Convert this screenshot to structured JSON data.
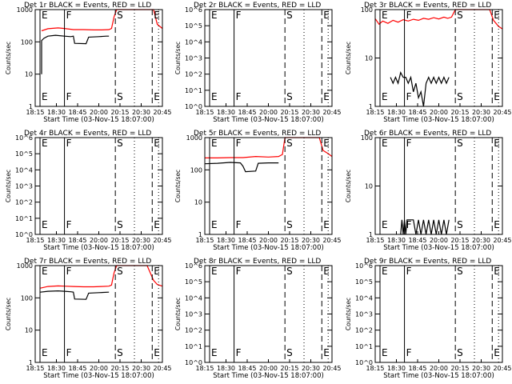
{
  "page": {
    "xlabel": "Start Time (03-Nov-15 18:07:00)",
    "ylabel": "Counts/sec",
    "x_ticks": [
      "18:15",
      "18:30",
      "18:45",
      "20:00",
      "20:15",
      "20:30",
      "20:45"
    ]
  },
  "colors": {
    "events": "#000000",
    "lld": "#ff0000",
    "axis": "#000000"
  },
  "chart_data": [
    {
      "title": "Det 1r BLACK = Events, RED = LLD",
      "type": "line",
      "scale": "log",
      "ylim": [
        1,
        1000
      ],
      "y_ticks": [
        {
          "v": 1,
          "t": "1"
        },
        {
          "v": 10,
          "t": "10"
        },
        {
          "v": 100,
          "t": "100"
        },
        {
          "v": 1000,
          "t": "1000"
        }
      ],
      "markers": [
        {
          "x": 0,
          "label": "E",
          "style": "solid"
        },
        {
          "x": 0.23,
          "label": "F",
          "style": "solid"
        },
        {
          "x": 0.63,
          "label": "S",
          "style": "dashed"
        },
        {
          "x": 0.92,
          "label": "E",
          "style": "dashed"
        }
      ],
      "series": [
        {
          "name": "LLD",
          "color": "#ff0000",
          "x": [
            0.05,
            0.1,
            0.18,
            0.23,
            0.3,
            0.38,
            0.46,
            0.52,
            0.58,
            0.6,
            0.62,
            0.64,
            0.66,
            0.7,
            0.74,
            0.78,
            0.84,
            0.88,
            0.93,
            0.96,
            1.0
          ],
          "y": [
            220,
            255,
            270,
            260,
            240,
            240,
            235,
            235,
            240,
            260,
            600,
            1000,
            1000,
            1000,
            1000,
            1000,
            1000,
            1000,
            1000,
            350,
            260
          ]
        },
        {
          "name": "Events",
          "color": "#000000",
          "x": [
            0.05,
            0.05,
            0.07,
            0.1,
            0.16,
            0.23,
            0.28,
            0.3,
            0.31,
            0.4,
            0.42,
            0.5,
            0.56,
            0.58
          ],
          "y": [
            10,
            110,
            130,
            150,
            160,
            150,
            145,
            150,
            90,
            88,
            140,
            145,
            150,
            150
          ]
        }
      ]
    },
    {
      "title": "Det 2r BLACK = Events, RED = LLD",
      "type": "line",
      "scale": "log",
      "ylim": [
        1,
        1000000
      ],
      "y_ticks": [
        {
          "v": 1,
          "t": "10^0"
        },
        {
          "v": 10,
          "t": "10^1"
        },
        {
          "v": 100,
          "t": "10^2"
        },
        {
          "v": 1000,
          "t": "10^3"
        },
        {
          "v": 10000,
          "t": "10^4"
        },
        {
          "v": 100000,
          "t": "10^5"
        },
        {
          "v": 1000000,
          "t": "10^6"
        }
      ],
      "markers": [
        {
          "x": 0,
          "label": "E",
          "style": "solid"
        },
        {
          "x": 0.23,
          "label": "F",
          "style": "solid"
        },
        {
          "x": 0.63,
          "label": "S",
          "style": "dashed"
        },
        {
          "x": 0.92,
          "label": "E",
          "style": "dashed"
        }
      ],
      "series": []
    },
    {
      "title": "Det 3r BLACK = Events, RED = LLD",
      "type": "line",
      "scale": "log",
      "ylim": [
        1,
        100
      ],
      "y_ticks": [
        {
          "v": 1,
          "t": "1"
        },
        {
          "v": 10,
          "t": "10"
        },
        {
          "v": 100,
          "t": "100"
        }
      ],
      "markers": [
        {
          "x": 0,
          "label": "E",
          "style": "solid"
        },
        {
          "x": 0.23,
          "label": "F",
          "style": "solid"
        },
        {
          "x": 0.63,
          "label": "S",
          "style": "dashed"
        },
        {
          "x": 0.92,
          "label": "E",
          "style": "dashed"
        }
      ],
      "series": [
        {
          "name": "LLD",
          "color": "#ff0000",
          "x": [
            0.0,
            0.03,
            0.06,
            0.1,
            0.14,
            0.18,
            0.22,
            0.26,
            0.3,
            0.34,
            0.38,
            0.42,
            0.46,
            0.5,
            0.54,
            0.57,
            0.6,
            0.63,
            0.66,
            0.7,
            0.74,
            0.8,
            0.86,
            0.9,
            0.93,
            0.97,
            1.0
          ],
          "y": [
            65,
            50,
            58,
            52,
            60,
            55,
            62,
            58,
            63,
            60,
            66,
            63,
            68,
            64,
            70,
            66,
            70,
            100,
            100,
            100,
            100,
            100,
            100,
            100,
            60,
            45,
            40
          ]
        },
        {
          "name": "Events",
          "color": "#000000",
          "x": [
            0.12,
            0.14,
            0.16,
            0.18,
            0.2,
            0.22,
            0.24,
            0.26,
            0.28,
            0.3,
            0.32,
            0.34,
            0.36,
            0.38,
            0.4,
            0.42,
            0.44,
            0.46,
            0.48,
            0.5,
            0.52,
            0.54,
            0.56,
            0.58
          ],
          "y": [
            4,
            3,
            4,
            3,
            5,
            4,
            4,
            3,
            4,
            2,
            3,
            1.5,
            2,
            1,
            3,
            4,
            3,
            4,
            3,
            4,
            3,
            4,
            3,
            4
          ]
        }
      ]
    },
    {
      "title": "Det 4r BLACK = Events, RED = LLD",
      "type": "line",
      "scale": "log",
      "ylim": [
        1,
        1000000
      ],
      "y_ticks": [
        {
          "v": 1,
          "t": "10^0"
        },
        {
          "v": 10,
          "t": "10^1"
        },
        {
          "v": 100,
          "t": "10^2"
        },
        {
          "v": 1000,
          "t": "10^3"
        },
        {
          "v": 10000,
          "t": "10^4"
        },
        {
          "v": 100000,
          "t": "10^5"
        },
        {
          "v": 1000000,
          "t": "10^6"
        }
      ],
      "markers": [
        {
          "x": 0,
          "label": "E",
          "style": "solid"
        },
        {
          "x": 0.23,
          "label": "F",
          "style": "solid"
        },
        {
          "x": 0.63,
          "label": "S",
          "style": "dashed"
        },
        {
          "x": 0.92,
          "label": "E",
          "style": "dashed"
        }
      ],
      "series": []
    },
    {
      "title": "Det 5r BLACK = Events, RED = LLD",
      "type": "line",
      "scale": "log",
      "ylim": [
        1,
        1000
      ],
      "y_ticks": [
        {
          "v": 1,
          "t": "1"
        },
        {
          "v": 10,
          "t": "10"
        },
        {
          "v": 100,
          "t": "100"
        },
        {
          "v": 1000,
          "t": "1000"
        }
      ],
      "markers": [
        {
          "x": 0,
          "label": "E",
          "style": "solid"
        },
        {
          "x": 0.23,
          "label": "F",
          "style": "solid"
        },
        {
          "x": 0.63,
          "label": "S",
          "style": "dashed"
        },
        {
          "x": 0.92,
          "label": "E",
          "style": "dashed"
        }
      ],
      "series": [
        {
          "name": "LLD",
          "color": "#ff0000",
          "x": [
            0.0,
            0.1,
            0.2,
            0.3,
            0.4,
            0.5,
            0.58,
            0.61,
            0.63,
            0.66,
            0.72,
            0.8,
            0.86,
            0.9,
            0.93,
            0.97,
            1.0
          ],
          "y": [
            235,
            235,
            240,
            240,
            260,
            250,
            260,
            300,
            1000,
            1000,
            1000,
            1000,
            1000,
            1000,
            400,
            320,
            260
          ]
        },
        {
          "name": "Events",
          "color": "#000000",
          "x": [
            0.0,
            0.1,
            0.2,
            0.28,
            0.3,
            0.32,
            0.4,
            0.42,
            0.5,
            0.58
          ],
          "y": [
            155,
            160,
            170,
            165,
            130,
            88,
            92,
            160,
            165,
            165
          ]
        }
      ]
    },
    {
      "title": "Det 6r BLACK = Events, RED = LLD",
      "type": "line",
      "scale": "log",
      "ylim": [
        1,
        100
      ],
      "y_ticks": [
        {
          "v": 1,
          "t": "1"
        },
        {
          "v": 10,
          "t": "10"
        },
        {
          "v": 100,
          "t": "100"
        }
      ],
      "markers": [
        {
          "x": 0,
          "label": "E",
          "style": "solid"
        },
        {
          "x": 0.23,
          "label": "F",
          "style": "solid"
        },
        {
          "x": 0.63,
          "label": "S",
          "style": "dashed"
        },
        {
          "x": 0.92,
          "label": "E",
          "style": "dashed"
        }
      ],
      "series": [
        {
          "name": "Events",
          "color": "#000000",
          "x": [
            0.2,
            0.21,
            0.22,
            0.23,
            0.24,
            0.25,
            0.26,
            0.3,
            0.32,
            0.34,
            0.36,
            0.38,
            0.4,
            0.42,
            0.44,
            0.46,
            0.48,
            0.5,
            0.52,
            0.54,
            0.56,
            0.58
          ],
          "y": [
            1,
            2,
            1,
            2,
            1,
            2,
            2,
            2,
            1,
            2,
            1,
            2,
            1,
            2,
            1,
            2,
            1,
            2,
            1,
            2,
            1,
            2
          ]
        }
      ]
    },
    {
      "title": "Det 7r BLACK = Events, RED = LLD",
      "type": "line",
      "scale": "log",
      "ylim": [
        1,
        1000
      ],
      "y_ticks": [
        {
          "v": 1,
          "t": "1"
        },
        {
          "v": 10,
          "t": "10"
        },
        {
          "v": 100,
          "t": "100"
        },
        {
          "v": 1000,
          "t": "1000"
        }
      ],
      "markers": [
        {
          "x": 0,
          "label": "E",
          "style": "solid"
        },
        {
          "x": 0.23,
          "label": "F",
          "style": "solid"
        },
        {
          "x": 0.63,
          "label": "S",
          "style": "dashed"
        },
        {
          "x": 0.92,
          "label": "E",
          "style": "dashed"
        }
      ],
      "series": [
        {
          "name": "LLD",
          "color": "#ff0000",
          "x": [
            0.04,
            0.1,
            0.18,
            0.23,
            0.3,
            0.38,
            0.46,
            0.52,
            0.58,
            0.6,
            0.62,
            0.64,
            0.7,
            0.8,
            0.88,
            0.93,
            0.96,
            1.0
          ],
          "y": [
            200,
            225,
            235,
            230,
            225,
            220,
            220,
            225,
            230,
            250,
            600,
            1000,
            1000,
            1000,
            1000,
            350,
            260,
            230
          ]
        },
        {
          "name": "Events",
          "color": "#000000",
          "x": [
            0.04,
            0.1,
            0.18,
            0.23,
            0.28,
            0.3,
            0.31,
            0.4,
            0.42,
            0.5,
            0.58
          ],
          "y": [
            150,
            160,
            165,
            160,
            155,
            150,
            92,
            90,
            140,
            145,
            150
          ]
        }
      ]
    },
    {
      "title": "Det 8r BLACK = Events, RED = LLD",
      "type": "line",
      "scale": "log",
      "ylim": [
        1,
        1000000
      ],
      "y_ticks": [
        {
          "v": 1,
          "t": "10^0"
        },
        {
          "v": 10,
          "t": "10^1"
        },
        {
          "v": 100,
          "t": "10^2"
        },
        {
          "v": 1000,
          "t": "10^3"
        },
        {
          "v": 10000,
          "t": "10^4"
        },
        {
          "v": 100000,
          "t": "10^5"
        },
        {
          "v": 1000000,
          "t": "10^6"
        }
      ],
      "markers": [
        {
          "x": 0,
          "label": "E",
          "style": "solid"
        },
        {
          "x": 0.23,
          "label": "F",
          "style": "solid"
        },
        {
          "x": 0.63,
          "label": "S",
          "style": "dashed"
        },
        {
          "x": 0.92,
          "label": "E",
          "style": "dashed"
        }
      ],
      "series": []
    },
    {
      "title": "Det 9r BLACK = Events, RED = LLD",
      "type": "line",
      "scale": "log",
      "ylim": [
        1,
        1000000
      ],
      "y_ticks": [
        {
          "v": 1,
          "t": "10^0"
        },
        {
          "v": 10,
          "t": "10^1"
        },
        {
          "v": 100,
          "t": "10^2"
        },
        {
          "v": 1000,
          "t": "10^3"
        },
        {
          "v": 10000,
          "t": "10^4"
        },
        {
          "v": 100000,
          "t": "10^5"
        },
        {
          "v": 1000000,
          "t": "10^6"
        }
      ],
      "markers": [
        {
          "x": 0,
          "label": "E",
          "style": "solid"
        },
        {
          "x": 0.23,
          "label": "F",
          "style": "solid"
        },
        {
          "x": 0.63,
          "label": "S",
          "style": "dashed"
        },
        {
          "x": 0.92,
          "label": "E",
          "style": "dashed"
        }
      ],
      "series": []
    }
  ]
}
